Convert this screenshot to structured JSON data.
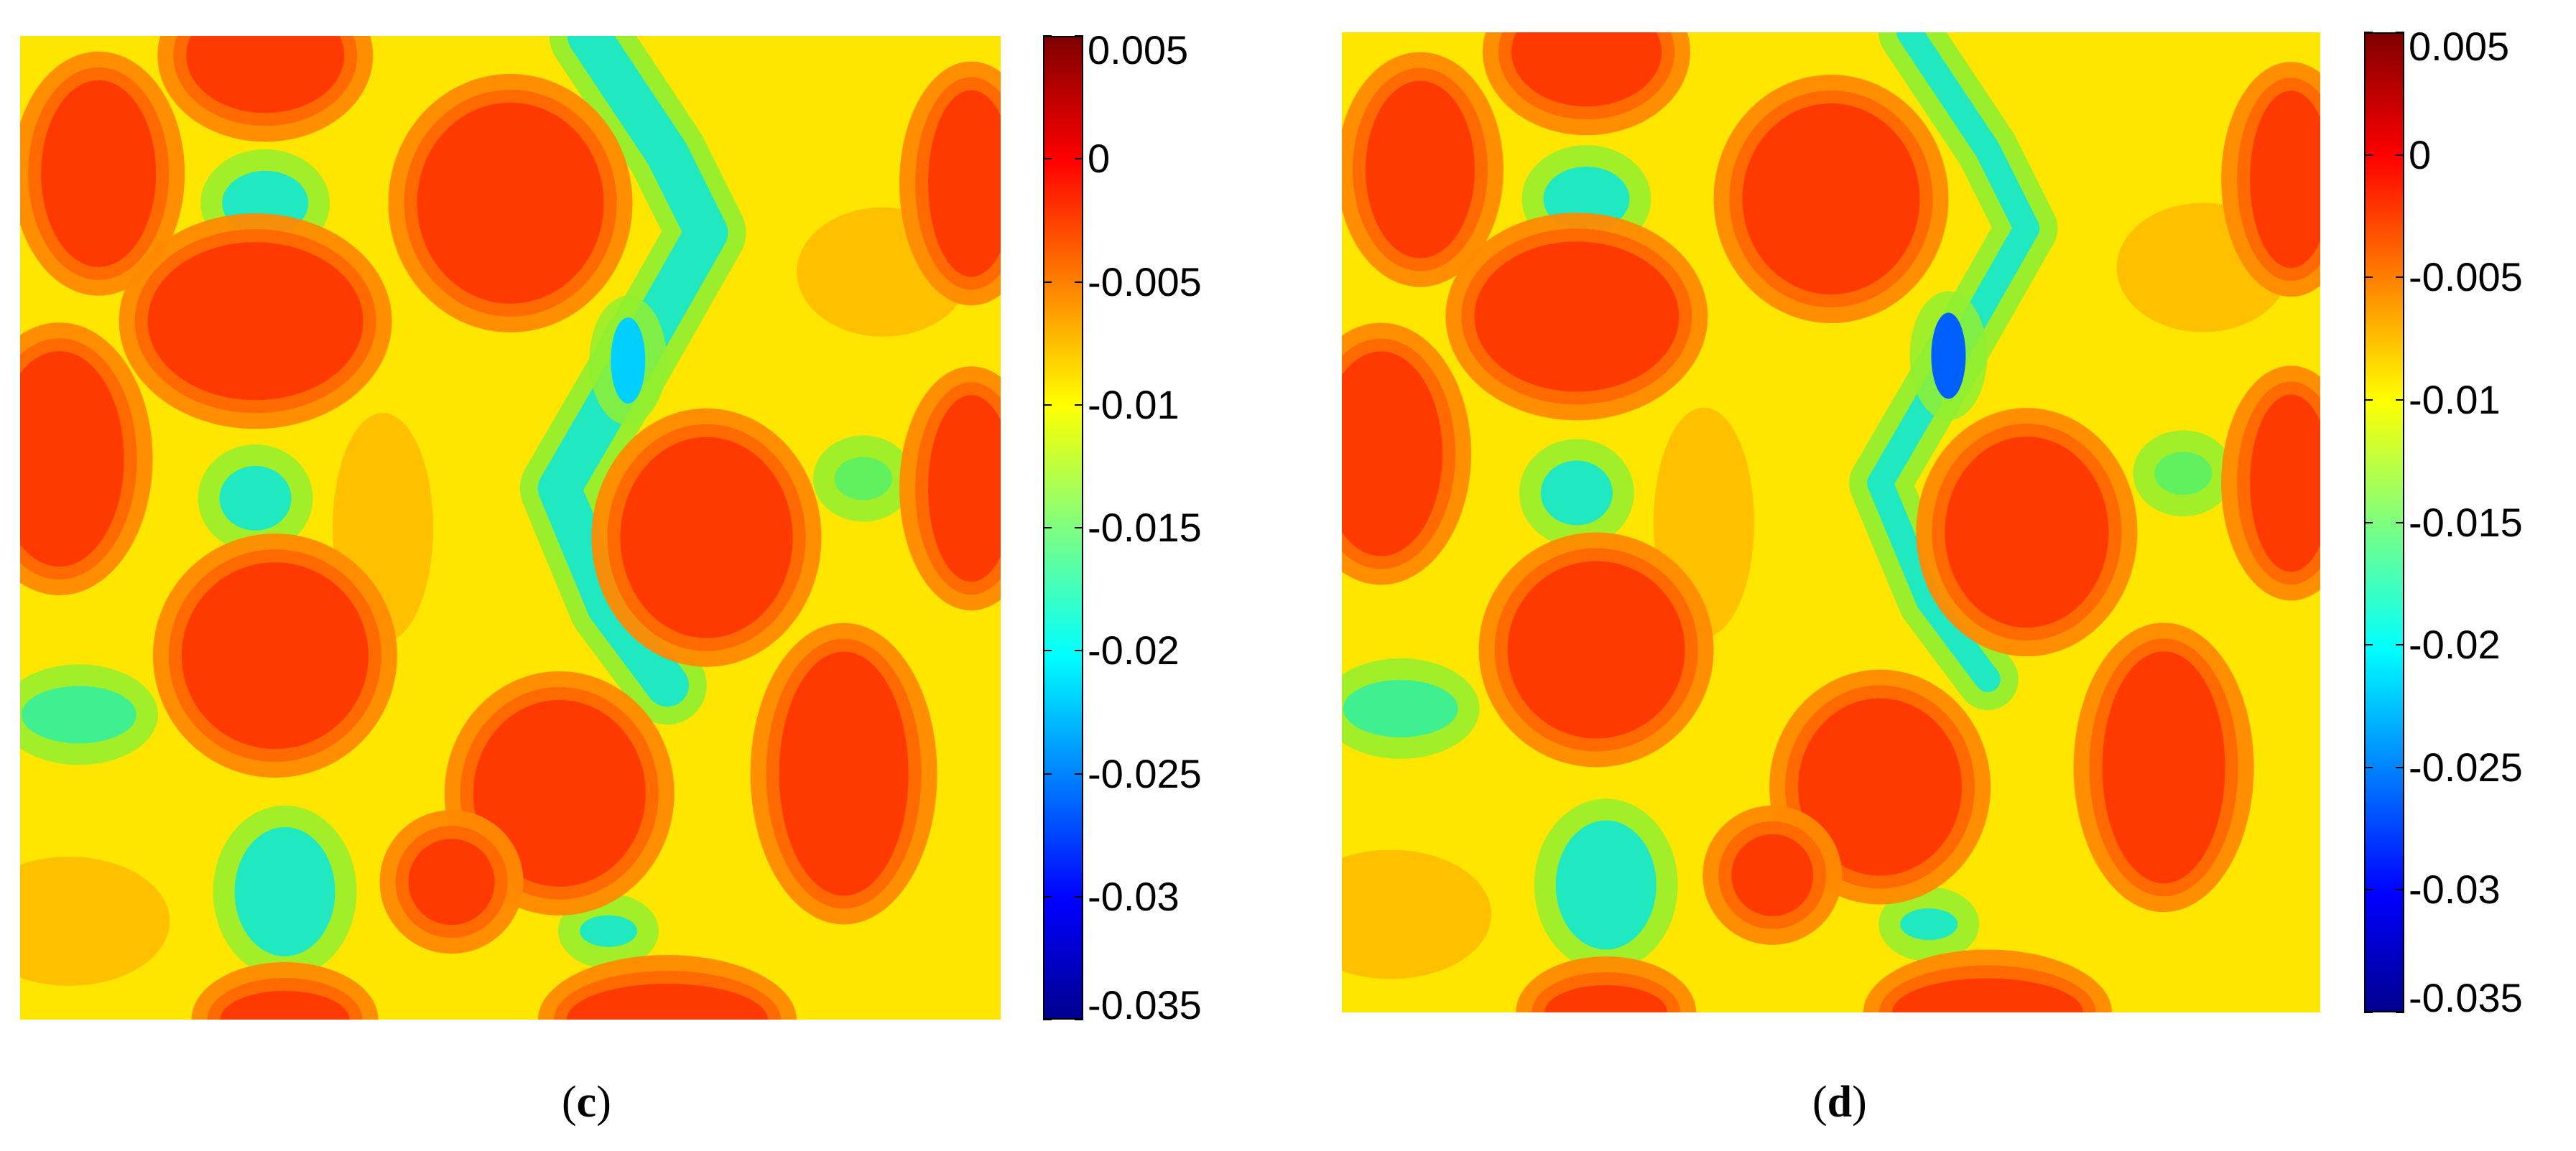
{
  "chart_data": [
    {
      "type": "heatmap",
      "panel_label": "c",
      "caption_open": "(",
      "caption_close": ")",
      "title": "",
      "xlabel": "",
      "ylabel": "",
      "colorbar": {
        "colormap": "jet",
        "range": [
          -0.035,
          0.005
        ],
        "ticks": [
          0.005,
          0,
          -0.005,
          -0.01,
          -0.015,
          -0.02,
          -0.025,
          -0.03,
          -0.035
        ],
        "tick_labels": [
          "0.005",
          "0",
          "-0.005",
          "-0.01",
          "-0.015",
          "-0.02",
          "-0.025",
          "-0.03",
          "-0.035"
        ],
        "position": "right"
      },
      "field_description": "contour levels of a diamond-lattice pattern: red-orange islands near 0 separated by yellow ridges near -0.01 and green-cyan troughs down to about -0.02",
      "grid": false
    },
    {
      "type": "heatmap",
      "panel_label": "d",
      "caption_open": "(",
      "caption_close": ")",
      "title": "",
      "xlabel": "",
      "ylabel": "",
      "colorbar": {
        "colormap": "jet",
        "range": [
          -0.035,
          0.005
        ],
        "ticks": [
          0.005,
          0,
          -0.005,
          -0.01,
          -0.015,
          -0.02,
          -0.025,
          -0.03,
          -0.035
        ],
        "tick_labels": [
          "0.005",
          "0",
          "-0.005",
          "-0.01",
          "-0.015",
          "-0.02",
          "-0.025",
          "-0.03",
          "-0.035"
        ],
        "position": "right"
      },
      "field_description": "same lattice pattern with sharper boundaries; deepest trough reaches about -0.025 (blue)",
      "grid": false
    }
  ],
  "colors": {
    "red": "#ff3a00",
    "orange": "#ff8a00",
    "yellow": "#ffe600",
    "green": "#90ee30",
    "cyan": "#20e8c0",
    "blue": "#0060ff"
  }
}
